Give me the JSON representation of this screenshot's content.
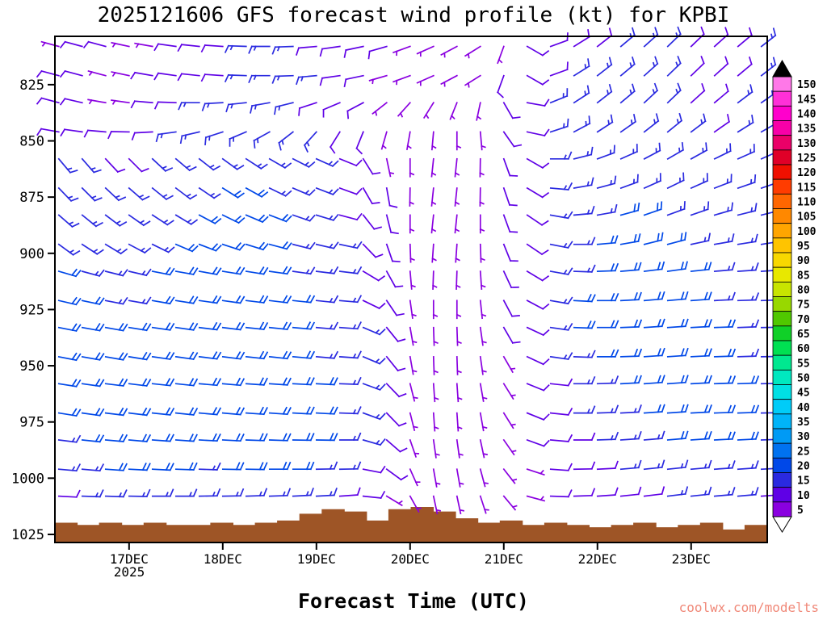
{
  "page": {
    "title": "2025121606 GFS forecast wind profile (kt) for KPBI",
    "xlabel": "Forecast Time (UTC)",
    "year_label": "2025",
    "watermark": "coolwx.com/modelts",
    "watermark_color": "#f08878"
  },
  "chart_data": {
    "type": "wind-barb-time-height",
    "title": "2025121606 GFS forecast wind profile (kt) for KPBI",
    "model": "GFS",
    "run": "2025121606",
    "station": "KPBI",
    "units": "kt",
    "xlabel": "Forecast Time (UTC)",
    "x_tick_labels": [
      "17DEC",
      "18DEC",
      "19DEC",
      "20DEC",
      "21DEC",
      "22DEC",
      "23DEC"
    ],
    "x_tick_hours": [
      24,
      48,
      72,
      96,
      120,
      144,
      168
    ],
    "x_axis_range_hours": [
      5,
      187.5
    ],
    "y_ticks": [
      825,
      850,
      875,
      900,
      925,
      950,
      975,
      1000,
      1025
    ],
    "y_axis_range": [
      803.5,
      1028.6
    ],
    "grid": false,
    "legend_position": "right",
    "watermark_color": "#f08878",
    "colorbar": {
      "values": [
        5,
        10,
        15,
        20,
        25,
        30,
        35,
        40,
        45,
        50,
        55,
        60,
        65,
        70,
        75,
        80,
        85,
        90,
        95,
        100,
        105,
        110,
        115,
        120,
        125,
        130,
        135,
        140,
        145,
        150
      ],
      "colors": [
        "#8a00e0",
        "#5f00e6",
        "#2a2ae0",
        "#0048e8",
        "#0072f0",
        "#009af5",
        "#00b4f8",
        "#00ccf8",
        "#00e0e4",
        "#00e8c0",
        "#00e890",
        "#00e052",
        "#10d028",
        "#50c800",
        "#98d800",
        "#c8e400",
        "#e8e800",
        "#f8d800",
        "#ffc400",
        "#ffa500",
        "#ff8800",
        "#ff6600",
        "#ff3c00",
        "#f01000",
        "#e00028",
        "#ea0068",
        "#f800a8",
        "#ff00cc",
        "#ff30d8",
        "#ff78e8"
      ],
      "over_color": "#000000",
      "under_color": "#ffffff"
    },
    "terrain": {
      "color": "#9e5526",
      "surface_pressure": [
        1020,
        1021,
        1020,
        1021,
        1020,
        1021,
        1021,
        1020,
        1021,
        1020,
        1019,
        1016,
        1014,
        1015,
        1019,
        1014,
        1013,
        1015,
        1018,
        1020,
        1019,
        1021,
        1020,
        1021,
        1022,
        1021,
        1020,
        1022,
        1021,
        1020,
        1023,
        1021
      ]
    },
    "barbs": {
      "hours": [
        6,
        12,
        18,
        24,
        30,
        36,
        42,
        48,
        54,
        60,
        66,
        72,
        78,
        84,
        90,
        96,
        102,
        108,
        114,
        120,
        126,
        132,
        138,
        144,
        150,
        156,
        162,
        168,
        174,
        180,
        186
      ],
      "levels_hpa": [
        808,
        821,
        833,
        846,
        858,
        871,
        883,
        896,
        908,
        921,
        933,
        946,
        958,
        971,
        983,
        996,
        1008
      ],
      "speeds_kt": [
        [
          5,
          10,
          10,
          5,
          5,
          10,
          10,
          10,
          15,
          15,
          15,
          10,
          10,
          10,
          10,
          5,
          5,
          5,
          5,
          5,
          10,
          10,
          10,
          10,
          15,
          15,
          15,
          10,
          10,
          10,
          15
        ],
        [
          10,
          10,
          5,
          5,
          10,
          10,
          10,
          10,
          15,
          15,
          15,
          15,
          10,
          10,
          5,
          5,
          5,
          5,
          5,
          10,
          10,
          10,
          15,
          15,
          15,
          15,
          15,
          10,
          10,
          10,
          15
        ],
        [
          10,
          10,
          5,
          5,
          10,
          10,
          15,
          15,
          15,
          15,
          15,
          10,
          10,
          10,
          5,
          5,
          5,
          5,
          5,
          10,
          10,
          15,
          15,
          15,
          15,
          15,
          15,
          10,
          10,
          15,
          15
        ],
        [
          10,
          10,
          10,
          10,
          10,
          15,
          15,
          15,
          15,
          15,
          15,
          15,
          10,
          10,
          5,
          5,
          5,
          5,
          5,
          10,
          10,
          15,
          15,
          15,
          15,
          15,
          15,
          15,
          10,
          15,
          15
        ],
        [
          15,
          15,
          10,
          10,
          15,
          15,
          15,
          15,
          15,
          15,
          15,
          15,
          10,
          10,
          5,
          5,
          5,
          5,
          5,
          10,
          10,
          15,
          15,
          15,
          15,
          15,
          15,
          15,
          15,
          15,
          15
        ],
        [
          15,
          15,
          15,
          15,
          15,
          15,
          15,
          20,
          20,
          15,
          15,
          15,
          10,
          10,
          10,
          5,
          5,
          5,
          5,
          10,
          10,
          15,
          15,
          15,
          15,
          15,
          15,
          15,
          15,
          15,
          15
        ],
        [
          15,
          15,
          15,
          15,
          15,
          15,
          20,
          20,
          20,
          20,
          15,
          15,
          10,
          10,
          10,
          5,
          5,
          5,
          5,
          10,
          10,
          15,
          15,
          15,
          20,
          20,
          15,
          15,
          15,
          15,
          15
        ],
        [
          15,
          15,
          15,
          15,
          15,
          20,
          20,
          20,
          20,
          20,
          15,
          15,
          15,
          10,
          10,
          5,
          5,
          5,
          5,
          10,
          10,
          15,
          15,
          20,
          20,
          20,
          20,
          15,
          15,
          15,
          15
        ],
        [
          20,
          15,
          15,
          15,
          20,
          20,
          20,
          20,
          20,
          20,
          15,
          15,
          15,
          10,
          10,
          5,
          5,
          5,
          5,
          10,
          10,
          15,
          15,
          20,
          20,
          20,
          20,
          20,
          15,
          15,
          15
        ],
        [
          20,
          20,
          15,
          15,
          20,
          20,
          20,
          20,
          20,
          20,
          20,
          15,
          15,
          10,
          10,
          5,
          5,
          5,
          5,
          10,
          10,
          15,
          20,
          20,
          20,
          20,
          20,
          20,
          15,
          15,
          15
        ],
        [
          20,
          20,
          20,
          20,
          20,
          20,
          20,
          20,
          20,
          20,
          20,
          15,
          15,
          15,
          10,
          5,
          5,
          5,
          5,
          10,
          10,
          15,
          20,
          20,
          20,
          20,
          20,
          20,
          20,
          15,
          15
        ],
        [
          20,
          20,
          20,
          20,
          20,
          20,
          20,
          20,
          20,
          20,
          20,
          15,
          15,
          15,
          10,
          5,
          5,
          5,
          5,
          5,
          10,
          15,
          15,
          20,
          20,
          20,
          20,
          20,
          20,
          15,
          15
        ],
        [
          20,
          20,
          20,
          20,
          20,
          20,
          20,
          20,
          20,
          20,
          20,
          20,
          15,
          15,
          10,
          5,
          5,
          5,
          5,
          5,
          10,
          10,
          15,
          15,
          20,
          20,
          20,
          20,
          20,
          20,
          15
        ],
        [
          20,
          20,
          20,
          20,
          20,
          20,
          20,
          20,
          20,
          20,
          20,
          20,
          15,
          15,
          10,
          5,
          5,
          5,
          5,
          5,
          10,
          10,
          15,
          15,
          15,
          20,
          20,
          20,
          20,
          20,
          15
        ],
        [
          15,
          20,
          20,
          20,
          20,
          20,
          20,
          20,
          20,
          20,
          20,
          20,
          15,
          15,
          10,
          5,
          5,
          5,
          5,
          5,
          10,
          10,
          10,
          15,
          15,
          15,
          20,
          20,
          20,
          20,
          15
        ],
        [
          15,
          15,
          20,
          20,
          20,
          20,
          15,
          20,
          20,
          20,
          20,
          15,
          15,
          10,
          10,
          5,
          5,
          5,
          5,
          5,
          5,
          10,
          10,
          10,
          15,
          15,
          15,
          15,
          15,
          15,
          15
        ],
        [
          10,
          15,
          15,
          15,
          15,
          15,
          15,
          15,
          15,
          15,
          15,
          15,
          10,
          10,
          5,
          5,
          5,
          5,
          5,
          5,
          5,
          10,
          10,
          10,
          10,
          10,
          15,
          15,
          15,
          15,
          10
        ]
      ],
      "directions_deg": [
        [
          285,
          285,
          285,
          282,
          280,
          278,
          276,
          274,
          272,
          270,
          268,
          265,
          262,
          258,
          254,
          250,
          246,
          242,
          238,
          200,
          120,
          70,
          58,
          52,
          50,
          48,
          46,
          46,
          48,
          50,
          52
        ],
        [
          285,
          285,
          285,
          282,
          280,
          278,
          276,
          274,
          272,
          270,
          268,
          265,
          262,
          258,
          254,
          250,
          246,
          242,
          238,
          200,
          120,
          70,
          58,
          52,
          50,
          48,
          46,
          46,
          48,
          50,
          52
        ],
        [
          285,
          283,
          280,
          278,
          275,
          272,
          270,
          267,
          264,
          260,
          256,
          252,
          247,
          242,
          232,
          222,
          212,
          202,
          192,
          150,
          100,
          68,
          57,
          52,
          50,
          47,
          46,
          48,
          50,
          53,
          55
        ],
        [
          280,
          278,
          275,
          271,
          267,
          262,
          257,
          252,
          247,
          241,
          232,
          222,
          212,
          202,
          196,
          190,
          185,
          180,
          175,
          145,
          102,
          72,
          62,
          57,
          55,
          52,
          51,
          53,
          55,
          58,
          60
        ],
        [
          140,
          139,
          137,
          135,
          133,
          130,
          128,
          126,
          123,
          120,
          117,
          114,
          112,
          148,
          168,
          180,
          186,
          186,
          181,
          160,
          120,
          90,
          76,
          70,
          66,
          62,
          60,
          61,
          64,
          66,
          66
        ],
        [
          136,
          135,
          133,
          131,
          129,
          127,
          124,
          122,
          119,
          116,
          113,
          111,
          110,
          150,
          170,
          181,
          186,
          186,
          181,
          161,
          121,
          95,
          80,
          75,
          70,
          66,
          64,
          66,
          69,
          71,
          71
        ],
        [
          131,
          129,
          127,
          125,
          123,
          121,
          118,
          116,
          113,
          111,
          109,
          107,
          105,
          142,
          166,
          180,
          186,
          186,
          180,
          160,
          124,
          100,
          85,
          80,
          75,
          71,
          70,
          71,
          74,
          76,
          76
        ],
        [
          126,
          123,
          121,
          118,
          116,
          113,
          111,
          108,
          107,
          105,
          104,
          103,
          102,
          136,
          161,
          178,
          184,
          184,
          178,
          158,
          124,
          101,
          90,
          85,
          80,
          76,
          75,
          78,
          80,
          81,
          81
        ],
        [
          106,
          105,
          104,
          103,
          101,
          100,
          100,
          99,
          99,
          98,
          98,
          97,
          97,
          121,
          151,
          175,
          182,
          182,
          176,
          155,
          121,
          100,
          92,
          88,
          85,
          83,
          82,
          84,
          85,
          86,
          86
        ],
        [
          103,
          102,
          101,
          100,
          100,
          99,
          98,
          98,
          97,
          97,
          96,
          96,
          95,
          116,
          146,
          172,
          180,
          180,
          174,
          152,
          118,
          100,
          93,
          90,
          87,
          85,
          85,
          86,
          87,
          88,
          88
        ],
        [
          101,
          100,
          100,
          99,
          98,
          98,
          97,
          97,
          96,
          96,
          95,
          95,
          94,
          113,
          141,
          170,
          178,
          178,
          172,
          150,
          115,
          98,
          92,
          90,
          88,
          86,
          86,
          87,
          88,
          88,
          89
        ],
        [
          101,
          100,
          100,
          99,
          98,
          98,
          97,
          97,
          96,
          96,
          95,
          95,
          94,
          113,
          141,
          170,
          178,
          178,
          172,
          150,
          115,
          98,
          92,
          90,
          88,
          86,
          86,
          87,
          88,
          88,
          89
        ],
        [
          99,
          98,
          97,
          97,
          96,
          96,
          95,
          95,
          94,
          94,
          93,
          93,
          92,
          110,
          136,
          166,
          176,
          176,
          170,
          148,
          112,
          96,
          90,
          88,
          87,
          86,
          86,
          87,
          88,
          88,
          89
        ],
        [
          99,
          98,
          97,
          97,
          96,
          96,
          95,
          95,
          94,
          94,
          93,
          93,
          92,
          110,
          136,
          166,
          176,
          176,
          170,
          148,
          112,
          96,
          90,
          88,
          87,
          86,
          86,
          87,
          88,
          88,
          89
        ],
        [
          97,
          96,
          95,
          95,
          94,
          94,
          93,
          93,
          92,
          92,
          91,
          91,
          90,
          106,
          131,
          161,
          172,
          172,
          168,
          145,
          110,
          95,
          90,
          88,
          86,
          85,
          85,
          86,
          87,
          87,
          88
        ],
        [
          95,
          95,
          94,
          93,
          93,
          92,
          92,
          91,
          91,
          90,
          90,
          89,
          89,
          101,
          126,
          156,
          170,
          170,
          165,
          142,
          108,
          94,
          89,
          87,
          85,
          84,
          84,
          85,
          86,
          86,
          87
        ],
        [
          93,
          92,
          92,
          91,
          90,
          90,
          89,
          89,
          88,
          88,
          87,
          87,
          86,
          96,
          121,
          151,
          168,
          168,
          162,
          140,
          105,
          92,
          88,
          86,
          84,
          83,
          83,
          84,
          85,
          85,
          86
        ]
      ]
    }
  }
}
